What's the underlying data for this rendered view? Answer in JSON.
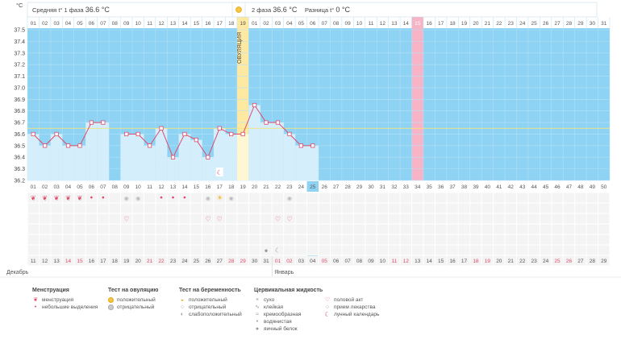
{
  "header": {
    "phase1_label": "Средняя t° 1 фаза",
    "phase1_value": "36.6 °C",
    "phase2_label": "2 фаза",
    "phase2_value": "36.6 °C",
    "diff_label": "Разница t°",
    "diff_value": "0 °C"
  },
  "unit_label": "°C",
  "ovulation_label": "ОВУЛЯЦИЯ",
  "chart_data": {
    "type": "line",
    "ylim": [
      36.2,
      37.5
    ],
    "yticks": [
      "37.5",
      "37.4",
      "37.3",
      "37.2",
      "37.1",
      "37.0",
      "36.9",
      "36.8",
      "36.7",
      "36.6",
      "36.5",
      "36.4",
      "36.3",
      "36.2"
    ],
    "days_top": [
      "01",
      "02",
      "03",
      "04",
      "05",
      "06",
      "07",
      "08",
      "09",
      "10",
      "11",
      "12",
      "13",
      "14",
      "15",
      "16",
      "17",
      "18",
      "19",
      "01",
      "02",
      "03",
      "04",
      "05",
      "06",
      "07",
      "08",
      "09",
      "10",
      "11",
      "12",
      "13",
      "14",
      "15",
      "16",
      "17",
      "18",
      "19",
      "20",
      "21",
      "22",
      "23",
      "24",
      "25",
      "26",
      "27",
      "28",
      "29",
      "30",
      "31"
    ],
    "cycle_days": [
      "01",
      "02",
      "03",
      "04",
      "05",
      "06",
      "07",
      "08",
      "09",
      "10",
      "11",
      "12",
      "13",
      "14",
      "15",
      "16",
      "17",
      "18",
      "19",
      "20",
      "21",
      "22",
      "23",
      "24",
      "25",
      "26",
      "27",
      "28",
      "29",
      "30",
      "31",
      "32",
      "33",
      "34",
      "35",
      "36",
      "37",
      "38",
      "39",
      "40",
      "41",
      "42",
      "43",
      "44",
      "45",
      "46",
      "47",
      "48",
      "49",
      "50"
    ],
    "dates": [
      "11",
      "12",
      "13",
      "14",
      "15",
      "16",
      "17",
      "18",
      "19",
      "20",
      "21",
      "22",
      "23",
      "24",
      "25",
      "26",
      "27",
      "28",
      "29",
      "30",
      "31",
      "01",
      "02",
      "03",
      "04",
      "05",
      "06",
      "07",
      "08",
      "09",
      "10",
      "11",
      "12",
      "13",
      "14",
      "15",
      "16",
      "17",
      "18",
      "19",
      "20",
      "21",
      "22",
      "23",
      "24",
      "25",
      "26",
      "27",
      "28",
      "29"
    ],
    "date_red": [
      false,
      false,
      false,
      true,
      true,
      false,
      false,
      false,
      false,
      false,
      true,
      true,
      false,
      false,
      false,
      false,
      false,
      true,
      true,
      false,
      false,
      true,
      true,
      false,
      false,
      true,
      false,
      false,
      false,
      false,
      false,
      true,
      true,
      false,
      false,
      false,
      false,
      false,
      true,
      true,
      false,
      false,
      false,
      false,
      false,
      true,
      true,
      false,
      false,
      false
    ],
    "month_labels": [
      "Декабрь",
      "Январь"
    ],
    "phase1_temps": [
      36.6,
      36.5,
      36.6,
      36.5,
      36.5,
      36.7,
      36.7,
      null,
      36.6,
      36.6,
      36.5,
      36.65,
      36.4,
      36.6,
      36.55,
      36.4,
      36.65,
      36.6,
      36.6
    ],
    "phase2_temps": [
      36.85,
      36.7,
      36.7,
      36.6,
      36.5,
      36.5
    ],
    "marker_color": "#e04a6a",
    "cover_line": 36.65,
    "ovulation_day": 19,
    "highlight_day": 34,
    "current_day": 25
  },
  "legend": {
    "menstruation": {
      "title": "Менструация",
      "items": [
        "менструация",
        "небольшие выделения"
      ]
    },
    "ovulation_test": {
      "title": "Тест на овуляцию",
      "items": [
        "положительный",
        "отрицательный"
      ]
    },
    "pregnancy_test": {
      "title": "Тест на беременность",
      "items": [
        "положительный",
        "отрицательный",
        "слабоположительный"
      ]
    },
    "cervical": {
      "title": "Цервикальная жидкость",
      "items": [
        "сухо",
        "клейкая",
        "кремообразная",
        "водянистая",
        "яичный белок"
      ]
    },
    "other": {
      "items": [
        "половой акт",
        "прием лекарства",
        "лунный календарь"
      ]
    }
  }
}
